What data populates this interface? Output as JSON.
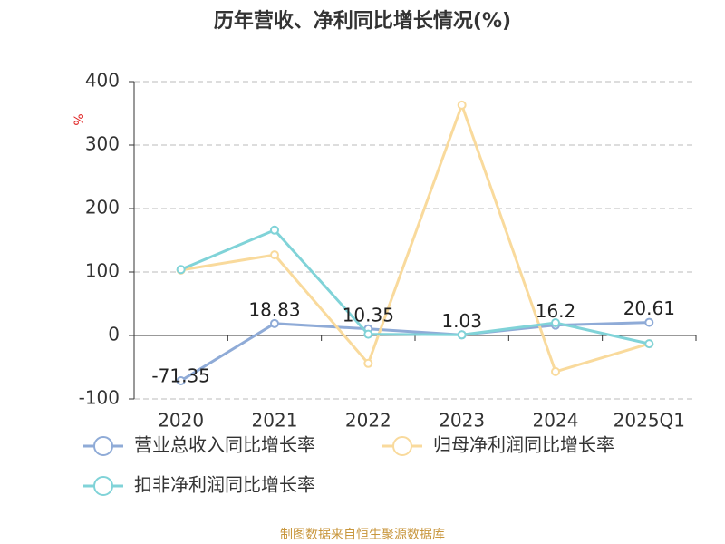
{
  "chart_data": {
    "type": "line",
    "title": "历年营收、净利同比增长情况(%)",
    "y_label": "%",
    "source": "制图数据来自恒生聚源数据库",
    "categories": [
      "2020",
      "2021",
      "2022",
      "2023",
      "2024",
      "2025Q1"
    ],
    "series": [
      {
        "name": "营业总收入同比增长率",
        "color": "#8fabd7",
        "values": [
          -71.35,
          18.83,
          10.35,
          1.03,
          16.2,
          20.61
        ],
        "data_labels": true
      },
      {
        "name": "归母净利润同比增长率",
        "color": "#f9da9c",
        "values": [
          103,
          127,
          -44,
          363,
          -57,
          -13
        ],
        "data_labels": false
      },
      {
        "name": "扣非净利润同比增长率",
        "color": "#80d3d8",
        "values": [
          104,
          166,
          2,
          1,
          20,
          -13
        ],
        "data_labels": false
      }
    ],
    "ylim": [
      -100,
      400
    ],
    "yticks": [
      -100,
      0,
      100,
      200,
      300,
      400
    ],
    "grid": true
  }
}
